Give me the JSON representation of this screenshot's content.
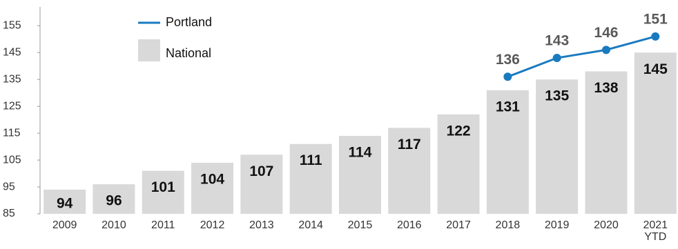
{
  "chart_data": {
    "type": "bar",
    "categories": [
      "2009",
      "2010",
      "2011",
      "2012",
      "2013",
      "2014",
      "2015",
      "2016",
      "2017",
      "2018",
      "2019",
      "2020",
      "2021\nYTD"
    ],
    "series": [
      {
        "name": "National",
        "type": "bar",
        "color": "#d9d9d9",
        "values": [
          94,
          96,
          101,
          104,
          107,
          111,
          114,
          117,
          122,
          131,
          135,
          138,
          145
        ]
      },
      {
        "name": "Portland",
        "type": "line",
        "color": "#1a7abf",
        "values": [
          null,
          null,
          null,
          null,
          null,
          null,
          null,
          null,
          null,
          136,
          143,
          146,
          151
        ]
      }
    ],
    "ylim": [
      85,
      162
    ],
    "yticks": [
      85,
      95,
      105,
      115,
      125,
      135,
      145,
      155
    ]
  }
}
